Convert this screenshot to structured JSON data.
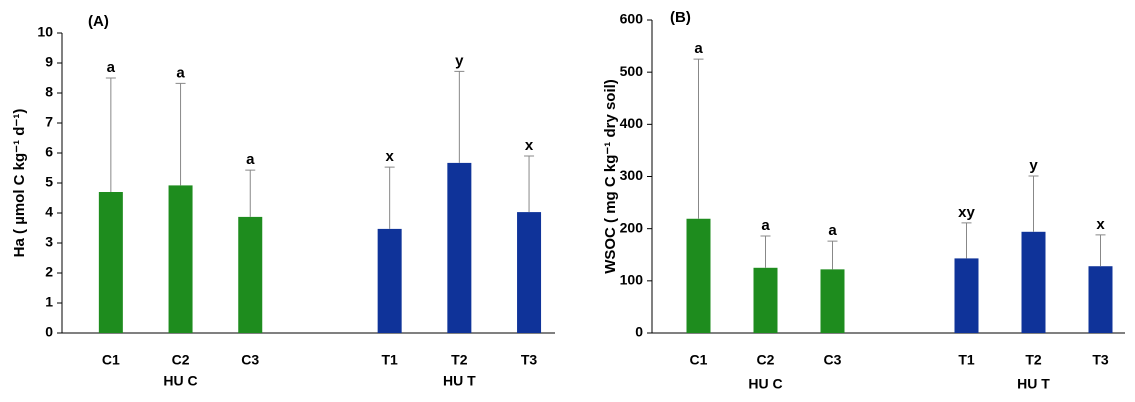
{
  "chart_data": [
    {
      "type": "bar",
      "title": "(A)",
      "ylabel": "Ha ( µmol C kg⁻¹ d⁻¹)",
      "ylim": [
        0,
        10
      ],
      "yticks": [
        0,
        1,
        2,
        3,
        4,
        5,
        6,
        7,
        8,
        9,
        10
      ],
      "groups": [
        {
          "name": "HU C",
          "color": "#1e8c1e",
          "categories": [
            "C1",
            "C2",
            "C3"
          ],
          "values": [
            4.7,
            4.92,
            3.87
          ],
          "errors": [
            3.8,
            3.4,
            1.56
          ],
          "letters": [
            "a",
            "a",
            "a"
          ]
        },
        {
          "name": "HU T",
          "color": "#0f3399",
          "categories": [
            "T1",
            "T2",
            "T3"
          ],
          "values": [
            3.47,
            5.67,
            4.03
          ],
          "errors": [
            2.06,
            3.05,
            1.87
          ],
          "letters": [
            "x",
            "y",
            "x"
          ]
        }
      ]
    },
    {
      "type": "bar",
      "title": "(B)",
      "ylabel": "WSOC ( mg C kg⁻¹ dry soil)",
      "ylim": [
        0,
        600
      ],
      "yticks": [
        0,
        100,
        200,
        300,
        400,
        500,
        600
      ],
      "groups": [
        {
          "name": "HU C",
          "color": "#1e8c1e",
          "categories": [
            "C1",
            "C2",
            "C3"
          ],
          "values": [
            219,
            125,
            122
          ],
          "errors": [
            306,
            61,
            54
          ],
          "letters": [
            "a",
            "a",
            "a"
          ]
        },
        {
          "name": "HU T",
          "color": "#0f3399",
          "categories": [
            "T1",
            "T2",
            "T3"
          ],
          "values": [
            143,
            194,
            128
          ],
          "errors": [
            68,
            107,
            60
          ],
          "letters": [
            "xy",
            "y",
            "x"
          ]
        }
      ]
    }
  ]
}
